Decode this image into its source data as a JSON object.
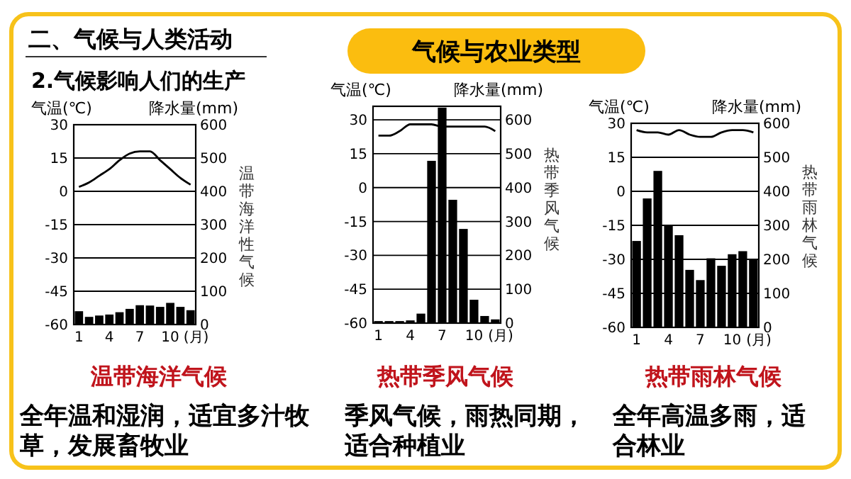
{
  "chart_data": [
    {
      "type": "bar",
      "title": "温带海洋气候",
      "xlabel": "(月)",
      "ylabel": "气温(℃)",
      "y2label": "降水量(mm)",
      "categories": [
        "1",
        null,
        null,
        "4",
        null,
        null,
        "7",
        null,
        null,
        "10",
        null,
        null
      ],
      "ylim": [
        -60,
        30
      ],
      "yticks": [
        -60,
        -45,
        -30,
        -15,
        0,
        15,
        30
      ],
      "y2lim": [
        0,
        600
      ],
      "y2ticks": [
        0,
        100,
        200,
        300,
        400,
        500,
        600
      ],
      "grid": "y",
      "series": [
        {
          "axis": "y2",
          "color": "#000000",
          "values": [
            40,
            23,
            27,
            30,
            37,
            47,
            58,
            57,
            53,
            65,
            53,
            43
          ]
        },
        {
          "type": "line",
          "axis": "y",
          "color": "#000000",
          "values": [
            2,
            4,
            7,
            10,
            14,
            17,
            18,
            18,
            14,
            10,
            6,
            3
          ]
        }
      ],
      "annotations": [
        "二、气候与人类活动",
        "2.气候影响人们的生产",
        "气候与农业类型",
        "温带海洋性气候",
        "全年温和湿润，适宜多汁牧草，发展畜牧业"
      ]
    },
    {
      "type": "bar",
      "title": "热带季风气候",
      "xlabel": "(月)",
      "ylabel": "气温(℃)",
      "y2label": "降水量(mm)",
      "categories": [
        "1",
        null,
        null,
        "4",
        null,
        null,
        "7",
        null,
        null,
        "10",
        null,
        null
      ],
      "ylim": [
        -60,
        36
      ],
      "yticks": [
        -60,
        -45,
        -30,
        -15,
        0,
        15,
        30
      ],
      "y2lim": [
        0,
        640
      ],
      "y2ticks": [
        0,
        100,
        200,
        300,
        400,
        500,
        600
      ],
      "grid": "y",
      "series": [
        {
          "axis": "y2",
          "color": "#000000",
          "values": [
            6,
            6,
            6,
            8,
            28,
            479,
            636,
            364,
            278,
            69,
            21,
            11
          ]
        },
        {
          "type": "line",
          "axis": "y",
          "color": "#000000",
          "values": [
            23,
            23,
            25,
            28,
            28,
            28,
            27,
            27,
            27,
            27,
            27,
            25
          ]
        }
      ],
      "annotations": [
        "热带季风气候",
        "季风气候，雨热同期，适合种植业"
      ]
    },
    {
      "type": "bar",
      "title": "热带雨林气候",
      "xlabel": "(月)",
      "ylabel": "气温(℃)",
      "y2label": "降水量(mm)",
      "categories": [
        "1",
        null,
        null,
        "4",
        null,
        null,
        "7",
        null,
        null,
        "10",
        null,
        null
      ],
      "ylim": [
        -60,
        30
      ],
      "yticks": [
        -60,
        -45,
        -30,
        -15,
        0,
        15,
        30
      ],
      "y2lim": [
        0,
        600
      ],
      "y2ticks": [
        0,
        100,
        200,
        300,
        400,
        500,
        600
      ],
      "grid": "y",
      "series": [
        {
          "axis": "y2",
          "color": "#000000",
          "values": [
            254,
            379,
            460,
            299,
            271,
            169,
            139,
            203,
            181,
            215,
            224,
            199
          ]
        },
        {
          "type": "line",
          "axis": "y",
          "color": "#000000",
          "values": [
            27,
            26,
            26,
            25,
            27,
            25,
            24,
            24,
            26,
            27,
            27,
            26
          ]
        }
      ],
      "annotations": [
        "热带雨林气候",
        "全年高温多雨，适合林业"
      ]
    }
  ]
}
